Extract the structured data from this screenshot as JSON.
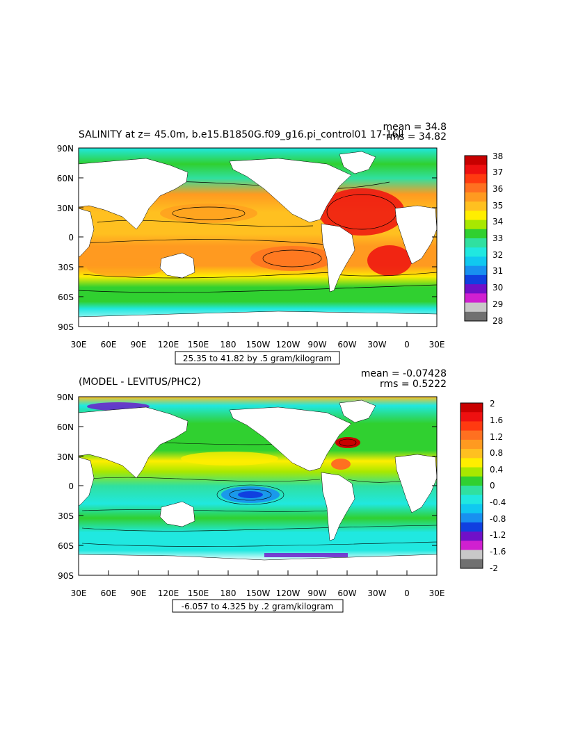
{
  "panels": [
    {
      "id": "top",
      "title": "SALINITY at z=  45.0m, b.e15.B1850G.f09_g16.pi_control01 17-16ll",
      "stats": {
        "mean": "mean = 34.8",
        "rms": "rms = 34.82"
      },
      "contour_info": "25.35 to 41.82 by .5 gram/kilogram",
      "lat_labels": [
        "90N",
        "60N",
        "30N",
        "0",
        "30S",
        "60S",
        "90S"
      ],
      "lon_labels": [
        "30E",
        "60E",
        "90E",
        "120E",
        "150E",
        "180",
        "150W",
        "120W",
        "90W",
        "60W",
        "30W",
        "0",
        "30E"
      ],
      "colorbar": {
        "labels": [
          "38",
          "37",
          "36",
          "35",
          "34",
          "33",
          "32",
          "31",
          "30",
          "29",
          "28"
        ],
        "colors": [
          "#c80000",
          "#ee1010",
          "#ff3a10",
          "#ff7020",
          "#ff9a20",
          "#ffc020",
          "#ffee00",
          "#a8e800",
          "#30d030",
          "#30e0a0",
          "#20e8e0",
          "#10c8f0",
          "#1890f0",
          "#1040e0",
          "#7010c8",
          "#d020d0",
          "#c8c8c8",
          "#707070"
        ]
      }
    },
    {
      "id": "bottom",
      "title": "(MODEL - LEVITUS/PHC2)",
      "stats": {
        "mean": "mean = -0.07428",
        "rms": "rms = 0.5222"
      },
      "contour_info": "-6.057 to 4.325 by .2 gram/kilogram",
      "lat_labels": [
        "90N",
        "60N",
        "30N",
        "0",
        "30S",
        "60S",
        "90S"
      ],
      "lon_labels": [
        "30E",
        "60E",
        "90E",
        "120E",
        "150E",
        "180",
        "150W",
        "120W",
        "90W",
        "60W",
        "30W",
        "0",
        "30E"
      ],
      "colorbar": {
        "labels": [
          "2",
          "1.6",
          "1.2",
          "0.8",
          "0.4",
          "0",
          "-0.4",
          "-0.8",
          "-1.2",
          "-1.6",
          "-2"
        ],
        "colors": [
          "#c80000",
          "#ee1010",
          "#ff3a10",
          "#ff7020",
          "#ff9a20",
          "#ffc020",
          "#ffee00",
          "#a8e800",
          "#30d030",
          "#30e0a0",
          "#20e8e0",
          "#10c8f0",
          "#1890f0",
          "#1040e0",
          "#7010c8",
          "#d020d0",
          "#c8c8c8",
          "#707070"
        ]
      }
    }
  ]
}
